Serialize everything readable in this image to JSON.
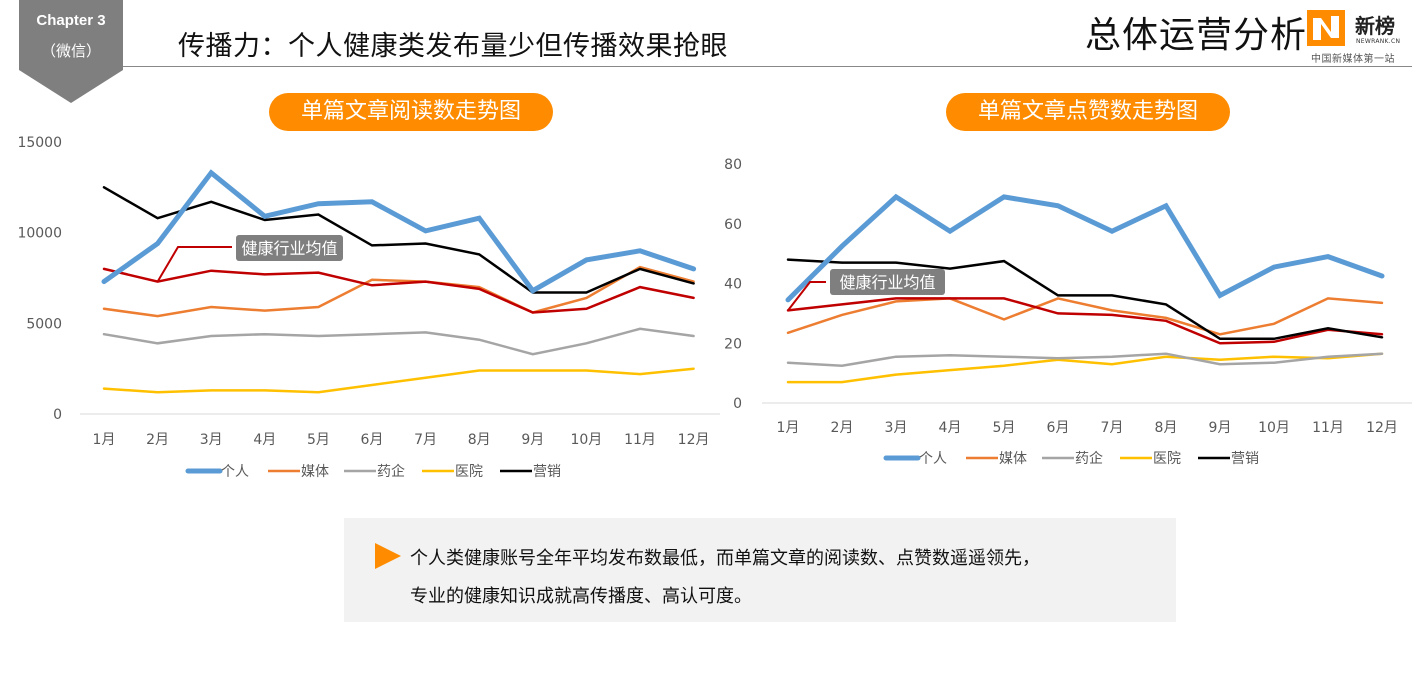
{
  "header": {
    "chapter_title": "Chapter 3",
    "chapter_sub": "（微信）",
    "page_title": "传播力：个人健康类发布量少但传播效果抢眼",
    "section_title": "总体运营分析",
    "logo_name": "新榜",
    "logo_url": "NEWRANK.CN",
    "logo_slogan": "中国新媒体第一站",
    "logo_icon": "newrank-n-logo-icon"
  },
  "colors": {
    "accent": "#ff8c00",
    "badge": "#7f7f7f",
    "个人": "#5b9bd5",
    "媒体": "#ed7d31",
    "药企": "#a5a5a5",
    "医院": "#ffc000",
    "营销": "#000000",
    "健康行业均值": "#c00000",
    "annotation_bg": "#7f7f7f"
  },
  "chart_data": [
    {
      "type": "line",
      "title": "单篇文章阅读数走势图",
      "xlabel": "",
      "ylabel": "",
      "categories": [
        "1月",
        "2月",
        "3月",
        "4月",
        "5月",
        "6月",
        "7月",
        "8月",
        "9月",
        "10月",
        "11月",
        "12月"
      ],
      "ylim": [
        0,
        15000
      ],
      "yticks": [
        0,
        5000,
        10000,
        15000
      ],
      "ytick_labels": [
        "0",
        "5000",
        "10000",
        "15000"
      ],
      "grid": false,
      "legend_position": "bottom",
      "series": [
        {
          "name": "个人",
          "values": [
            7300,
            9400,
            13300,
            10900,
            11600,
            11700,
            10100,
            10800,
            6800,
            8500,
            9000,
            8000
          ]
        },
        {
          "name": "媒体",
          "values": [
            5800,
            5400,
            5900,
            5700,
            5900,
            7400,
            7300,
            7000,
            5600,
            6400,
            8100,
            7300
          ]
        },
        {
          "name": "药企",
          "values": [
            4400,
            3900,
            4300,
            4400,
            4300,
            4400,
            4500,
            4100,
            3300,
            3900,
            4700,
            4300
          ]
        },
        {
          "name": "医院",
          "values": [
            1400,
            1200,
            1300,
            1300,
            1200,
            1600,
            2000,
            2400,
            2400,
            2400,
            2200,
            2500
          ]
        },
        {
          "name": "营销",
          "values": [
            12500,
            10800,
            11700,
            10700,
            11000,
            9300,
            9400,
            8800,
            6700,
            6700,
            8000,
            7200
          ]
        },
        {
          "name": "健康行业均值",
          "values": [
            8000,
            7300,
            7900,
            7700,
            7800,
            7100,
            7300,
            6900,
            5600,
            5800,
            7000,
            6400
          ],
          "in_legend": false
        }
      ],
      "legend": [
        "个人",
        "媒体",
        "药企",
        "医院",
        "营销"
      ],
      "annotation": {
        "text": "健康行业均值",
        "points_to": "2月"
      }
    },
    {
      "type": "line",
      "title": "单篇文章点赞数走势图",
      "xlabel": "",
      "ylabel": "",
      "categories": [
        "1月",
        "2月",
        "3月",
        "4月",
        "5月",
        "6月",
        "7月",
        "8月",
        "9月",
        "10月",
        "11月",
        "12月"
      ],
      "ylim": [
        0,
        80
      ],
      "yticks": [
        0,
        20,
        40,
        60,
        80
      ],
      "ytick_labels": [
        "0",
        "20",
        "40",
        "60",
        "80"
      ],
      "grid": false,
      "legend_position": "bottom",
      "series": [
        {
          "name": "个人",
          "values": [
            34.5,
            52.5,
            69,
            57.5,
            69,
            66,
            57.5,
            66,
            36,
            45.5,
            49,
            42.5
          ]
        },
        {
          "name": "媒体",
          "values": [
            23.5,
            29.5,
            34,
            35,
            28,
            35,
            31,
            28.5,
            23,
            26.5,
            35,
            33.5
          ]
        },
        {
          "name": "药企",
          "values": [
            13.5,
            12.5,
            15.5,
            16,
            15.5,
            15,
            15.5,
            16.5,
            13,
            13.5,
            15.5,
            16.5
          ]
        },
        {
          "name": "医院",
          "values": [
            7,
            7,
            9.5,
            11,
            12.5,
            14.5,
            13,
            15.5,
            14.5,
            15.5,
            15,
            16.5
          ]
        },
        {
          "name": "营销",
          "values": [
            48,
            47,
            47,
            45,
            47.5,
            36,
            36,
            33,
            21.5,
            21.5,
            25,
            22
          ]
        },
        {
          "name": "健康行业均值",
          "values": [
            31,
            33,
            35,
            35,
            35,
            30,
            29.5,
            27.5,
            20,
            20.5,
            24.5,
            23
          ],
          "in_legend": false
        }
      ],
      "legend": [
        "个人",
        "媒体",
        "药企",
        "医院",
        "营销"
      ],
      "annotation": {
        "text": "健康行业均值",
        "points_to": "1月"
      }
    }
  ],
  "callout": {
    "icon": "orange-triangle-bullet-icon",
    "line1": "个人类健康账号全年平均发布数最低，而单篇文章的阅读数、点赞数遥遥领先，",
    "line2": "专业的健康知识成就高传播度、高认可度。"
  }
}
